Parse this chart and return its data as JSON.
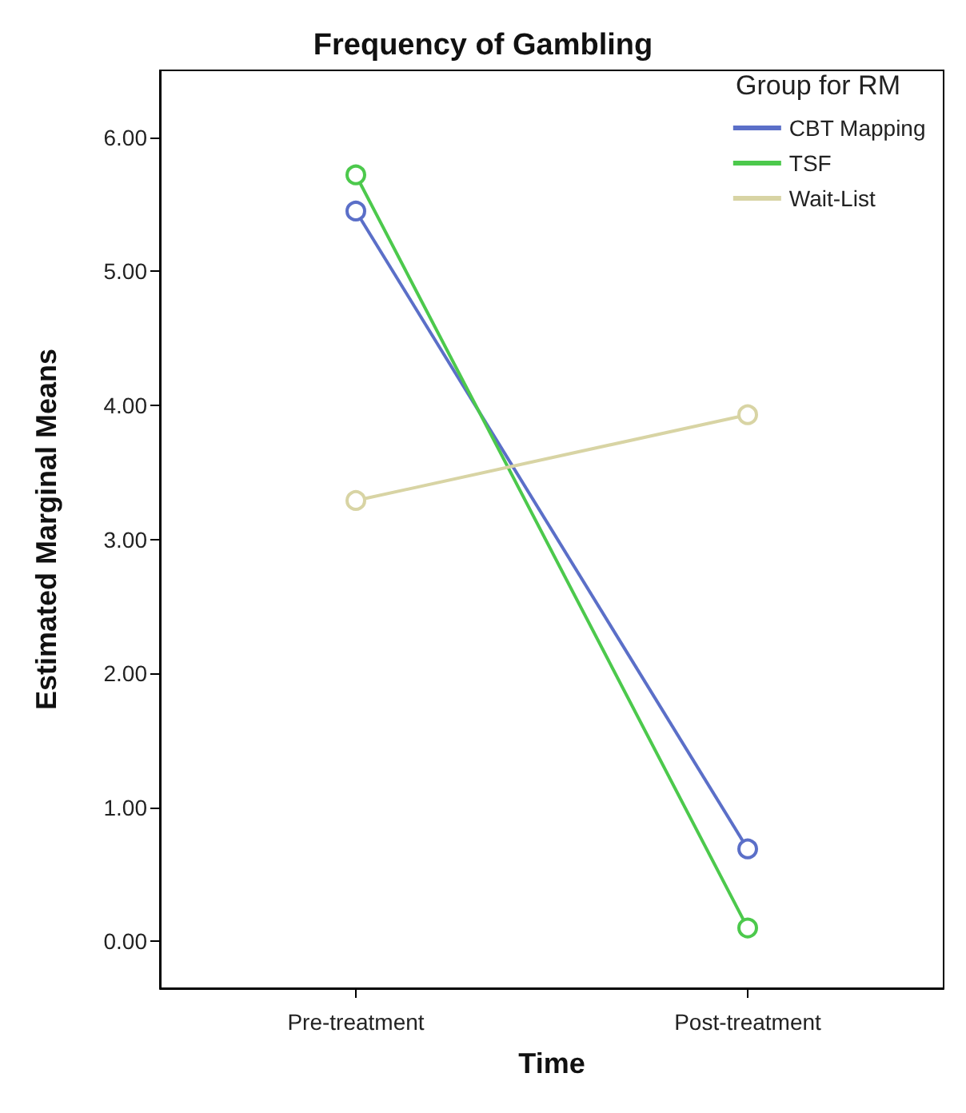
{
  "chart_data": {
    "type": "line",
    "title": "Frequency of Gambling",
    "xlabel": "Time",
    "ylabel": "Estimated Marginal Means",
    "legend_title": "Group for RM",
    "categories": [
      "Pre-treatment",
      "Post-treatment"
    ],
    "series": [
      {
        "name": "CBT Mapping",
        "color": "#5b6fc8",
        "values": [
          5.45,
          0.69
        ]
      },
      {
        "name": "TSF",
        "color": "#4cc94c",
        "values": [
          5.72,
          0.1
        ]
      },
      {
        "name": "Wait-List",
        "color": "#d8d4a4",
        "values": [
          3.29,
          3.93
        ]
      }
    ],
    "ylim": [
      -0.35,
      6.5
    ],
    "yticks": [
      {
        "value": 0,
        "label": "0.00"
      },
      {
        "value": 1,
        "label": "1.00"
      },
      {
        "value": 2,
        "label": "2.00"
      },
      {
        "value": 3,
        "label": "3.00"
      },
      {
        "value": 4,
        "label": "4.00"
      },
      {
        "value": 5,
        "label": "5.00"
      },
      {
        "value": 6,
        "label": "6.00"
      }
    ],
    "legend": "top right",
    "marker": "circle",
    "line_style": "solid",
    "grid": false
  }
}
